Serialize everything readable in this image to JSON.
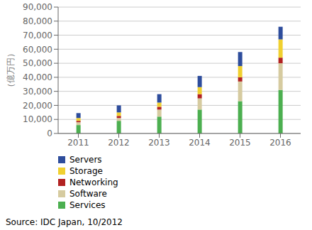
{
  "chart_data": {
    "type": "bar",
    "stacked": true,
    "categories": [
      "2011",
      "2012",
      "2013",
      "2014",
      "2015",
      "2016"
    ],
    "series": [
      {
        "name": "Services",
        "color": "#4caf50",
        "values": [
          6000,
          9000,
          12000,
          17000,
          23000,
          31000
        ]
      },
      {
        "name": "Software",
        "color": "#d6cba0",
        "values": [
          2000,
          2000,
          5000,
          8000,
          14000,
          19000
        ]
      },
      {
        "name": "Networking",
        "color": "#b22222",
        "values": [
          1000,
          1500,
          2000,
          3000,
          3000,
          4000
        ]
      },
      {
        "name": "Storage",
        "color": "#f0d030",
        "values": [
          2000,
          2500,
          3000,
          5000,
          8000,
          13000
        ]
      },
      {
        "name": "Servers",
        "color": "#2e4d9c",
        "values": [
          3500,
          5000,
          6000,
          8000,
          10000,
          9000
        ]
      }
    ],
    "ylabel": "（億万円）",
    "ylim": [
      0,
      90000
    ],
    "yticks": [
      0,
      {
        "value": 10000,
        "label": "10,000"
      },
      {
        "value": 20000,
        "label": "20,000"
      },
      {
        "value": 30000,
        "label": "30,000"
      },
      {
        "value": 40000,
        "label": "40,000"
      },
      {
        "value": 50000,
        "label": "50,000"
      },
      {
        "value": 60000,
        "label": "60,000"
      },
      {
        "value": 70000,
        "label": "70,000"
      },
      {
        "value": 80000,
        "label": "80,000"
      },
      {
        "value": 90000,
        "label": "90,000"
      }
    ],
    "grid": true,
    "legend": "bottom",
    "annotations": [
      "Source: IDC Japan, 10/2012"
    ]
  }
}
